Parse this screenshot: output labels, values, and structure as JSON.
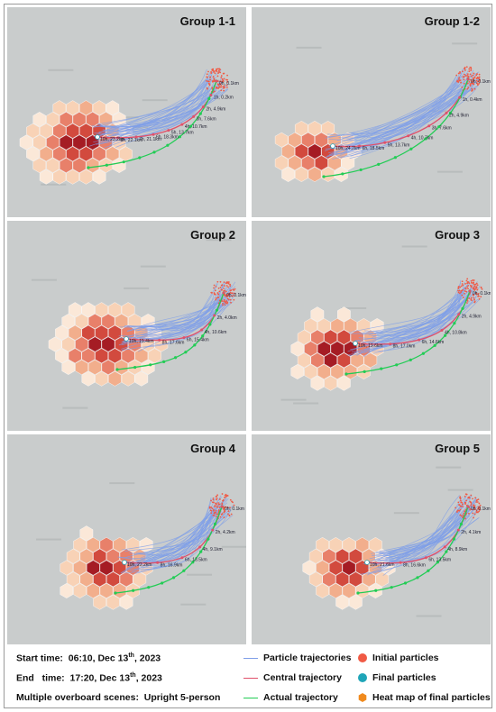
{
  "panels": [
    {
      "title": "Group 1-1",
      "labels": [
        "0h, 0.1km",
        "1h, 0.2km",
        "2h, 4.9km",
        "3h, 7.6km",
        "4h, 10.7km",
        "5h, 13.7km",
        "6h, 18.3km",
        "7h, 21.1km",
        "8h, 22.1km",
        "10h, 23.2km"
      ]
    },
    {
      "title": "Group 1-2",
      "labels": [
        "0h, 0.1km",
        "1h, 0.4km",
        "2h, 4.9km",
        "3h, 7.6km",
        "4h, 10.7km",
        "5h, 13.7km",
        "6h, 18.5km",
        "10h, 24.2km"
      ]
    },
    {
      "title": "Group 2",
      "labels": [
        "0h, 0.1km",
        "2h, 4.0km",
        "4h, 10.6km",
        "6h, 15.4km",
        "8h, 17.6km",
        "10h, 19.4km"
      ]
    },
    {
      "title": "Group 3",
      "labels": [
        "0h, 0.1km",
        "2h, 4.9km",
        "4h, 10.8km",
        "6h, 14.6km",
        "8h, 17.0km",
        "10h, 19.6km"
      ]
    },
    {
      "title": "Group 4",
      "labels": [
        "0h, 0.1km",
        "2h, 4.2km",
        "4h, 9.1km",
        "6h, 13.5km",
        "8h, 16.9km",
        "10h, 22.2km"
      ]
    },
    {
      "title": "Group 5",
      "labels": [
        "0h, 0.1km",
        "2h, 4.1km",
        "4h, 8.9km",
        "6h, 13.5km",
        "8h, 16.6km",
        "10h, 21.6km"
      ]
    }
  ],
  "info": {
    "start_label": "Start time:",
    "start_value": "06:10, Dec 13",
    "start_sup": "th",
    "start_year": ", 2023",
    "end_label": "End   time:",
    "end_value": "17:20, Dec 13",
    "end_sup": "th",
    "end_year": ", 2023",
    "scene_label": "Multiple overboard scenes:",
    "scene_value": "Upright 5-person"
  },
  "legend": {
    "particle_traj": "Particle trajectories",
    "central_traj": "Central trajectory",
    "actual_traj": "Actual trajectory",
    "initial": "Initial particles",
    "final": "Final particles",
    "heatmap": "Heat map of final particles"
  },
  "colors": {
    "particle": "#7f9fe8",
    "central": "#e0506a",
    "actual": "#22cc55",
    "initial": "#f05a45",
    "final": "#1fa5b8",
    "heat": "#f08a1e",
    "background": "#c9cccc"
  }
}
